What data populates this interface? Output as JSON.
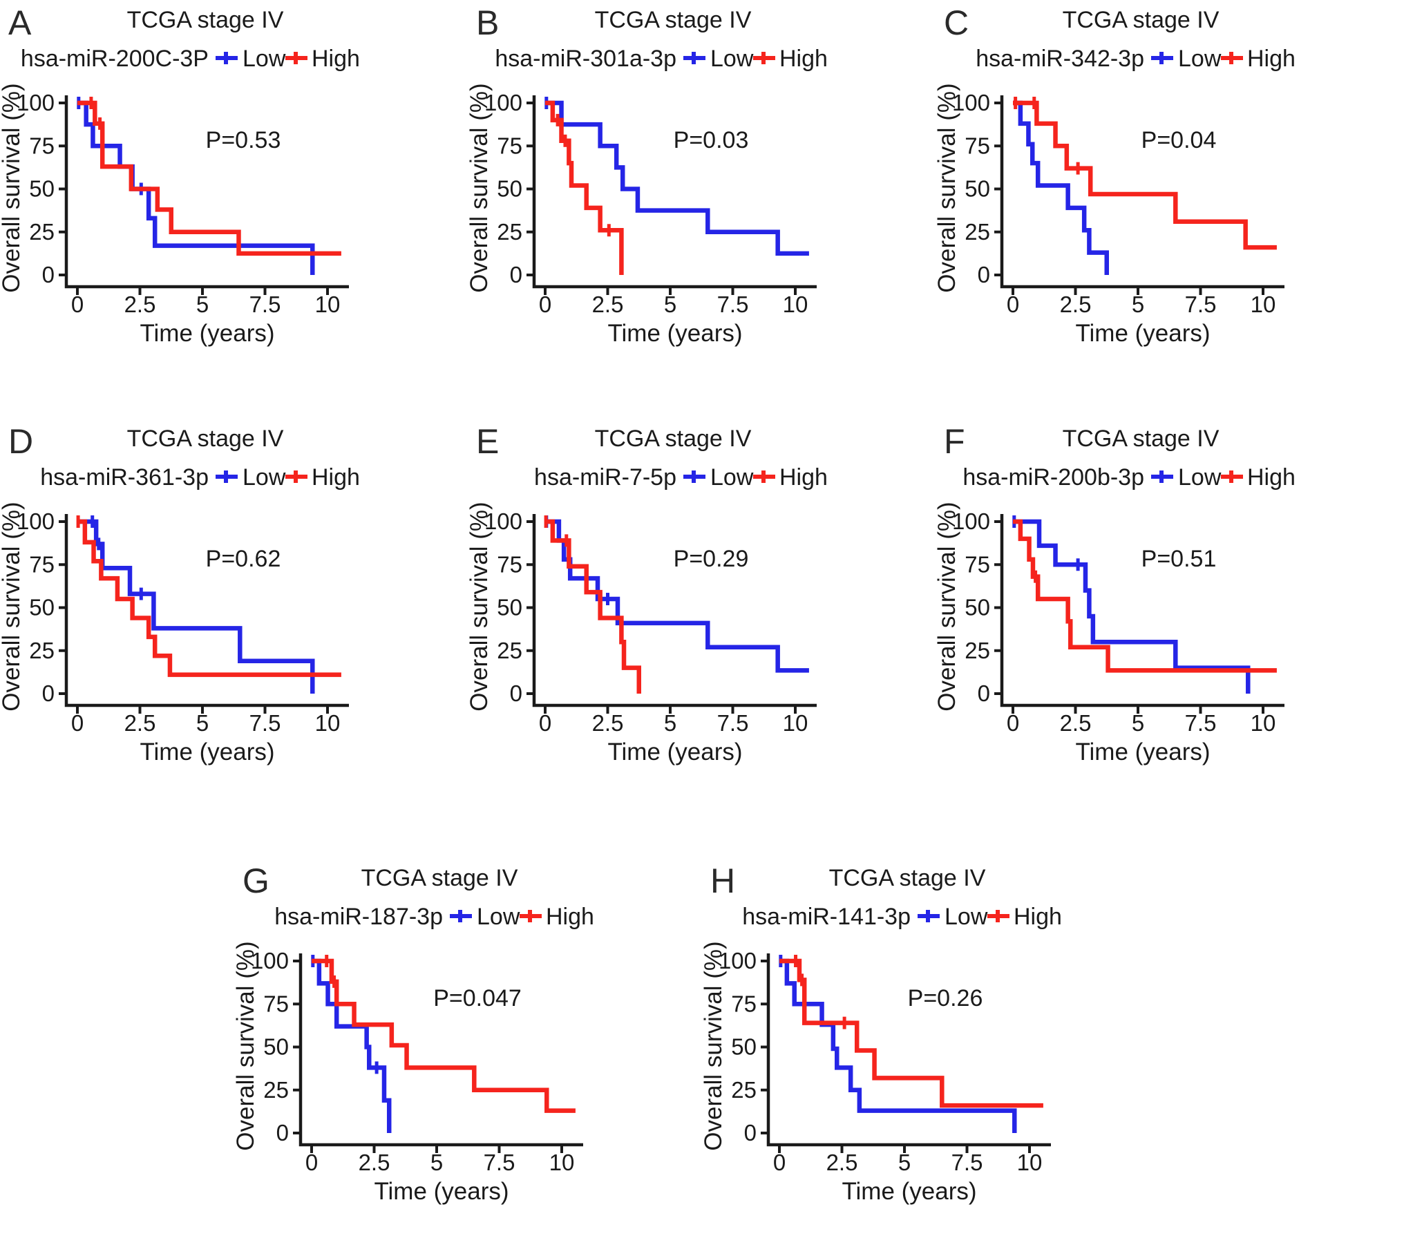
{
  "figure": {
    "background": "#ffffff"
  },
  "colors": {
    "low": "#2525e6",
    "high": "#f5241d",
    "axis": "#1a1a1a",
    "text": "#1a1a1a"
  },
  "legend": {
    "low_label": "Low",
    "high_label": "High"
  },
  "axes": {
    "x_label": "Time (years)",
    "y_label": "Overall survival (%)",
    "x_ticks": [
      {
        "value": 0,
        "label": "0"
      },
      {
        "value": 2.5,
        "label": "2.5"
      },
      {
        "value": 5,
        "label": "5"
      },
      {
        "value": 7.5,
        "label": "7.5"
      },
      {
        "value": 10,
        "label": "10"
      }
    ],
    "y_ticks": [
      {
        "value": 0,
        "label": "0"
      },
      {
        "value": 25,
        "label": "25"
      },
      {
        "value": 50,
        "label": "50"
      },
      {
        "value": 75,
        "label": "75"
      },
      {
        "value": 100,
        "label": "100"
      }
    ],
    "x_range": [
      0,
      10.55
    ],
    "y_range": [
      0,
      100
    ]
  },
  "chart_data": [
    {
      "type": "line",
      "kind": "kaplan-meier",
      "panel": "A",
      "title": "TCGA stage IV",
      "mirna": "hsa-miR-200C-3P",
      "p_value": "P=0.53",
      "series": [
        {
          "name": "Low",
          "group": "low",
          "steps": [
            [
              0,
              100
            ],
            [
              0.35,
              87.5
            ],
            [
              0.62,
              75
            ],
            [
              1.7,
              63
            ],
            [
              2.2,
              50
            ],
            [
              2.85,
              33
            ],
            [
              3.1,
              17
            ],
            [
              9.4,
              0
            ]
          ],
          "end": 9.4,
          "censors": [
            [
              0.05,
              100
            ],
            [
              2.55,
              50
            ]
          ]
        },
        {
          "name": "High",
          "group": "high",
          "steps": [
            [
              0,
              100
            ],
            [
              0.7,
              88
            ],
            [
              1.0,
              63
            ],
            [
              2.15,
              50
            ],
            [
              3.2,
              38
            ],
            [
              3.75,
              25
            ],
            [
              6.45,
              12.5
            ]
          ],
          "end": 10.55,
          "censors": [
            [
              0.55,
              100
            ],
            [
              0.9,
              88
            ]
          ]
        }
      ]
    },
    {
      "type": "line",
      "kind": "kaplan-meier",
      "panel": "B",
      "title": "TCGA stage IV",
      "mirna": "hsa-miR-301a-3p",
      "p_value": "P=0.03",
      "series": [
        {
          "name": "Low",
          "group": "low",
          "steps": [
            [
              0,
              100
            ],
            [
              0.65,
              87.5
            ],
            [
              2.2,
              75
            ],
            [
              2.85,
              62.5
            ],
            [
              3.1,
              50
            ],
            [
              3.7,
              37.5
            ],
            [
              6.5,
              25
            ],
            [
              9.3,
              12.5
            ]
          ],
          "end": 10.55,
          "censors": [
            [
              0.05,
              100
            ]
          ]
        },
        {
          "name": "High",
          "group": "high",
          "steps": [
            [
              0,
              100
            ],
            [
              0.3,
              90
            ],
            [
              0.65,
              78
            ],
            [
              0.95,
              65
            ],
            [
              1.05,
              52
            ],
            [
              1.65,
              39
            ],
            [
              2.2,
              26
            ],
            [
              3.05,
              0
            ]
          ],
          "end": 3.05,
          "censors": [
            [
              0.5,
              90
            ],
            [
              0.8,
              78
            ],
            [
              2.55,
              26
            ]
          ]
        }
      ]
    },
    {
      "type": "line",
      "kind": "kaplan-meier",
      "panel": "C",
      "title": "TCGA stage IV",
      "mirna": "hsa-miR-342-3p",
      "p_value": "P=0.04",
      "series": [
        {
          "name": "Low",
          "group": "low",
          "steps": [
            [
              0,
              100
            ],
            [
              0.3,
              88
            ],
            [
              0.62,
              76
            ],
            [
              0.78,
              65
            ],
            [
              1.0,
              52
            ],
            [
              2.2,
              39
            ],
            [
              2.85,
              26
            ],
            [
              3.05,
              13
            ],
            [
              3.75,
              0
            ]
          ],
          "end": 3.75,
          "censors": []
        },
        {
          "name": "High",
          "group": "high",
          "steps": [
            [
              0,
              100
            ],
            [
              0.95,
              88
            ],
            [
              1.7,
              75
            ],
            [
              2.15,
              62
            ],
            [
              3.1,
              47
            ],
            [
              6.5,
              31
            ],
            [
              9.3,
              16
            ]
          ],
          "end": 10.55,
          "censors": [
            [
              0.1,
              100
            ],
            [
              0.85,
              100
            ],
            [
              2.6,
              62
            ]
          ]
        }
      ]
    },
    {
      "type": "line",
      "kind": "kaplan-meier",
      "panel": "D",
      "title": "TCGA stage IV",
      "mirna": "hsa-miR-361-3p",
      "p_value": "P=0.62",
      "series": [
        {
          "name": "Low",
          "group": "low",
          "steps": [
            [
              0,
              100
            ],
            [
              0.75,
              87
            ],
            [
              1.0,
              73
            ],
            [
              2.1,
              58
            ],
            [
              3.05,
              38
            ],
            [
              6.5,
              19
            ],
            [
              9.4,
              0
            ]
          ],
          "end": 9.4,
          "censors": [
            [
              0.6,
              100
            ],
            [
              0.85,
              87
            ],
            [
              2.55,
              58
            ]
          ]
        },
        {
          "name": "High",
          "group": "high",
          "steps": [
            [
              0,
              100
            ],
            [
              0.3,
              88
            ],
            [
              0.65,
              77
            ],
            [
              0.95,
              67
            ],
            [
              1.6,
              55
            ],
            [
              2.2,
              44
            ],
            [
              2.85,
              33
            ],
            [
              3.1,
              22
            ],
            [
              3.7,
              11
            ]
          ],
          "end": 10.55,
          "censors": [
            [
              0.03,
              100
            ]
          ]
        }
      ]
    },
    {
      "type": "line",
      "kind": "kaplan-meier",
      "panel": "E",
      "title": "TCGA stage IV",
      "mirna": "hsa-miR-7-5p",
      "p_value": "P=0.29",
      "series": [
        {
          "name": "Low",
          "group": "low",
          "steps": [
            [
              0,
              100
            ],
            [
              0.55,
              89
            ],
            [
              0.75,
              78
            ],
            [
              1.0,
              67
            ],
            [
              2.1,
              55
            ],
            [
              2.9,
              41
            ],
            [
              6.5,
              27
            ],
            [
              9.3,
              13.5
            ]
          ],
          "end": 10.55,
          "censors": [
            [
              0.05,
              100
            ],
            [
              2.5,
              55
            ]
          ]
        },
        {
          "name": "High",
          "group": "high",
          "steps": [
            [
              0,
              100
            ],
            [
              0.3,
              89
            ],
            [
              0.95,
              74
            ],
            [
              1.65,
              59
            ],
            [
              2.2,
              44
            ],
            [
              3.05,
              30
            ],
            [
              3.15,
              15
            ],
            [
              3.75,
              0
            ]
          ],
          "end": 3.75,
          "censors": [
            [
              0.03,
              100
            ],
            [
              0.85,
              89
            ]
          ]
        }
      ]
    },
    {
      "type": "line",
      "kind": "kaplan-meier",
      "panel": "F",
      "title": "TCGA stage IV",
      "mirna": "hsa-miR-200b-3p",
      "p_value": "P=0.51",
      "series": [
        {
          "name": "Low",
          "group": "low",
          "steps": [
            [
              0,
              100
            ],
            [
              1.05,
              86
            ],
            [
              1.7,
              75
            ],
            [
              2.9,
              60
            ],
            [
              3.05,
              45
            ],
            [
              3.2,
              30
            ],
            [
              6.5,
              15
            ],
            [
              9.4,
              0
            ]
          ],
          "end": 9.4,
          "censors": [
            [
              0.05,
              100
            ],
            [
              2.6,
              75
            ]
          ]
        },
        {
          "name": "High",
          "group": "high",
          "steps": [
            [
              0,
              100
            ],
            [
              0.3,
              90
            ],
            [
              0.65,
              78
            ],
            [
              0.8,
              68
            ],
            [
              1.0,
              55
            ],
            [
              2.2,
              42
            ],
            [
              2.3,
              27
            ],
            [
              3.8,
              13.5
            ]
          ],
          "end": 10.55,
          "censors": [
            [
              0.9,
              68
            ]
          ]
        }
      ]
    },
    {
      "type": "line",
      "kind": "kaplan-meier",
      "panel": "G",
      "title": "TCGA stage IV",
      "mirna": "hsa-miR-187-3p",
      "p_value": "P=0.047",
      "series": [
        {
          "name": "Low",
          "group": "low",
          "steps": [
            [
              0,
              100
            ],
            [
              0.3,
              87
            ],
            [
              0.65,
              75
            ],
            [
              1.0,
              62
            ],
            [
              2.2,
              50
            ],
            [
              2.3,
              38
            ],
            [
              2.9,
              19
            ],
            [
              3.1,
              0
            ]
          ],
          "end": 3.1,
          "censors": [
            [
              0.05,
              100
            ],
            [
              2.6,
              38
            ]
          ]
        },
        {
          "name": "High",
          "group": "high",
          "steps": [
            [
              0,
              100
            ],
            [
              0.8,
              88
            ],
            [
              1.0,
              75
            ],
            [
              1.7,
              63
            ],
            [
              3.2,
              51
            ],
            [
              3.8,
              38
            ],
            [
              6.5,
              25
            ],
            [
              9.4,
              13
            ]
          ],
          "end": 10.55,
          "censors": [
            [
              0.6,
              100
            ],
            [
              0.9,
              88
            ]
          ]
        }
      ]
    },
    {
      "type": "line",
      "kind": "kaplan-meier",
      "panel": "H",
      "title": "TCGA stage IV",
      "mirna": "hsa-miR-141-3p",
      "p_value": "P=0.26",
      "series": [
        {
          "name": "Low",
          "group": "low",
          "steps": [
            [
              0,
              100
            ],
            [
              0.3,
              87
            ],
            [
              0.6,
              75
            ],
            [
              1.7,
              63
            ],
            [
              2.15,
              49
            ],
            [
              2.3,
              38
            ],
            [
              2.85,
              25
            ],
            [
              3.2,
              13
            ],
            [
              9.4,
              0
            ]
          ],
          "end": 9.4,
          "censors": [
            [
              0.05,
              100
            ]
          ]
        },
        {
          "name": "High",
          "group": "high",
          "steps": [
            [
              0,
              100
            ],
            [
              0.8,
              89
            ],
            [
              1.0,
              64
            ],
            [
              3.1,
              48
            ],
            [
              3.8,
              32
            ],
            [
              6.5,
              16
            ]
          ],
          "end": 10.55,
          "censors": [
            [
              0.65,
              100
            ],
            [
              0.9,
              89
            ],
            [
              2.6,
              64
            ]
          ]
        }
      ]
    }
  ]
}
